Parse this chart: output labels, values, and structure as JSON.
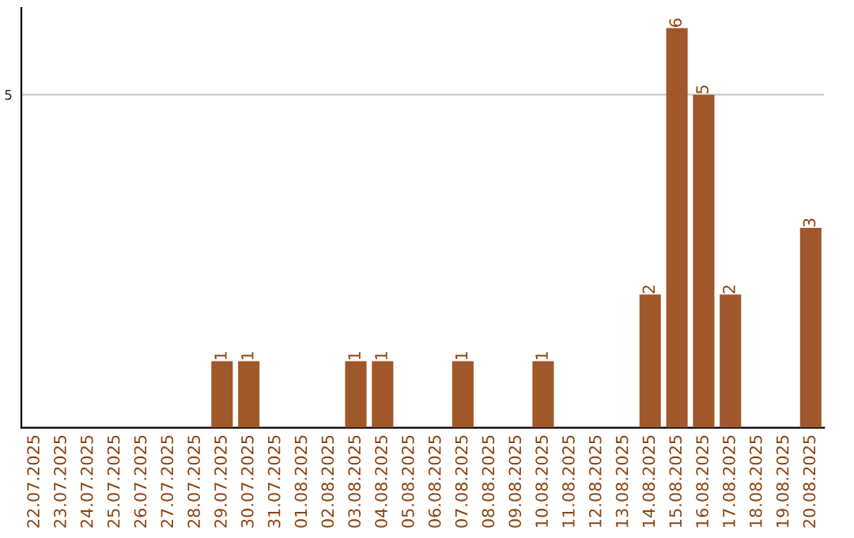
{
  "chart_data": {
    "type": "bar",
    "categories": [
      "22.07.2025",
      "23.07.2025",
      "24.07.2025",
      "25.07.2025",
      "26.07.2025",
      "27.07.2025",
      "28.07.2025",
      "29.07.2025",
      "30.07.2025",
      "31.07.2025",
      "01.08.2025",
      "02.08.2025",
      "03.08.2025",
      "04.08.2025",
      "05.08.2025",
      "06.08.2025",
      "07.08.2025",
      "08.08.2025",
      "09.08.2025",
      "10.08.2025",
      "11.08.2025",
      "12.08.2025",
      "13.08.2025",
      "14.08.2025",
      "15.08.2025",
      "16.08.2025",
      "17.08.2025",
      "18.08.2025",
      "19.08.2025",
      "20.08.2025"
    ],
    "values": [
      null,
      null,
      null,
      null,
      null,
      null,
      null,
      1,
      1,
      null,
      null,
      null,
      1,
      1,
      null,
      null,
      1,
      null,
      null,
      1,
      null,
      null,
      null,
      2,
      6,
      5,
      2,
      null,
      null,
      3
    ],
    "value_labels": [
      null,
      null,
      null,
      null,
      null,
      null,
      null,
      "1",
      "1",
      null,
      null,
      null,
      "1",
      "1",
      null,
      null,
      "1",
      null,
      null,
      "1",
      null,
      null,
      null,
      "2",
      "6",
      "5",
      "2",
      null,
      null,
      "3"
    ],
    "color": "#a0572a",
    "ylim": [
      0,
      6.3
    ],
    "yticks": [
      5
    ],
    "grid": "y"
  }
}
